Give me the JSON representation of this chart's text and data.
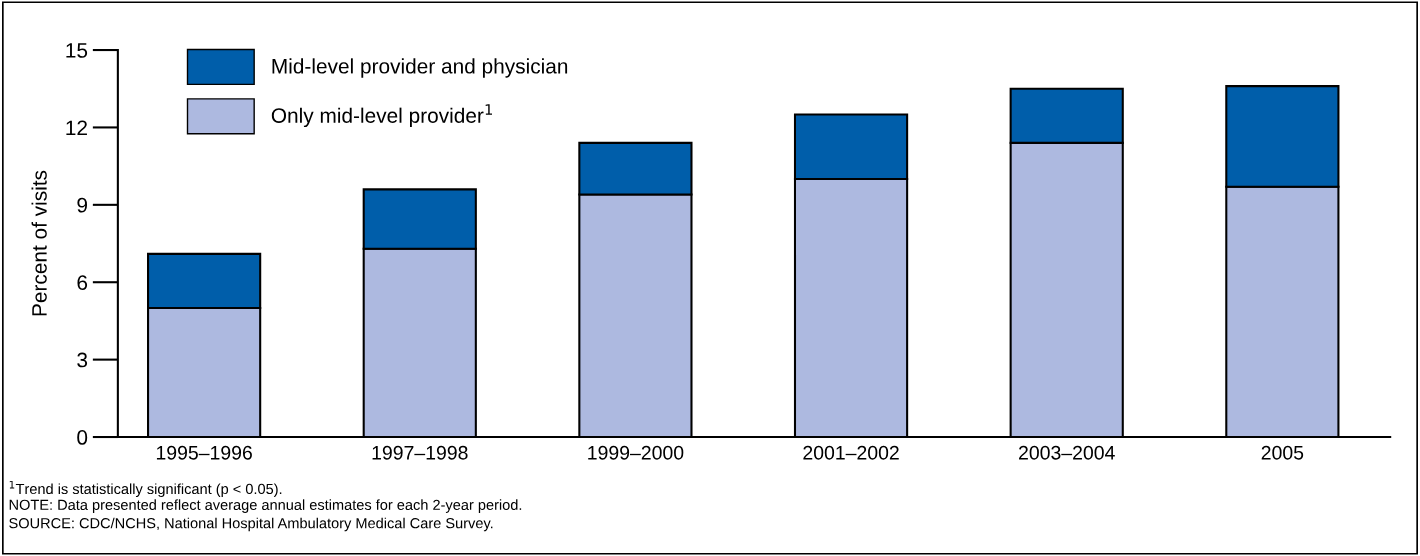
{
  "chart_data": {
    "type": "bar",
    "stacked": true,
    "ylabel": "Percent of visits",
    "categories": [
      "1995–1996",
      "1997–1998",
      "1999–2000",
      "2001–2002",
      "2003–2004",
      "2005"
    ],
    "series": [
      {
        "name": "Only mid-level provider$^{1}$",
        "color": "#adb9e0",
        "values": [
          5.0,
          7.3,
          9.4,
          10.0,
          11.4,
          9.7
        ]
      },
      {
        "name": "Mid-level provider and physician",
        "color": "#005eaa",
        "values": [
          2.1,
          2.3,
          2.0,
          2.5,
          2.1,
          3.9
        ]
      }
    ],
    "ylim": [
      0,
      15
    ],
    "yticks": [
      0,
      3,
      6,
      9,
      12,
      15
    ],
    "grid": false,
    "legend": "top left",
    "annotations": [
      "$^{1}$Trend is statistically significant (p < 0.05).",
      "NOTE: Data presented reflect average annual estimates for each 2-year period.",
      "SOURCE: CDC/NCHS, National Hospital Ambulatory Medical Care Survey."
    ]
  }
}
